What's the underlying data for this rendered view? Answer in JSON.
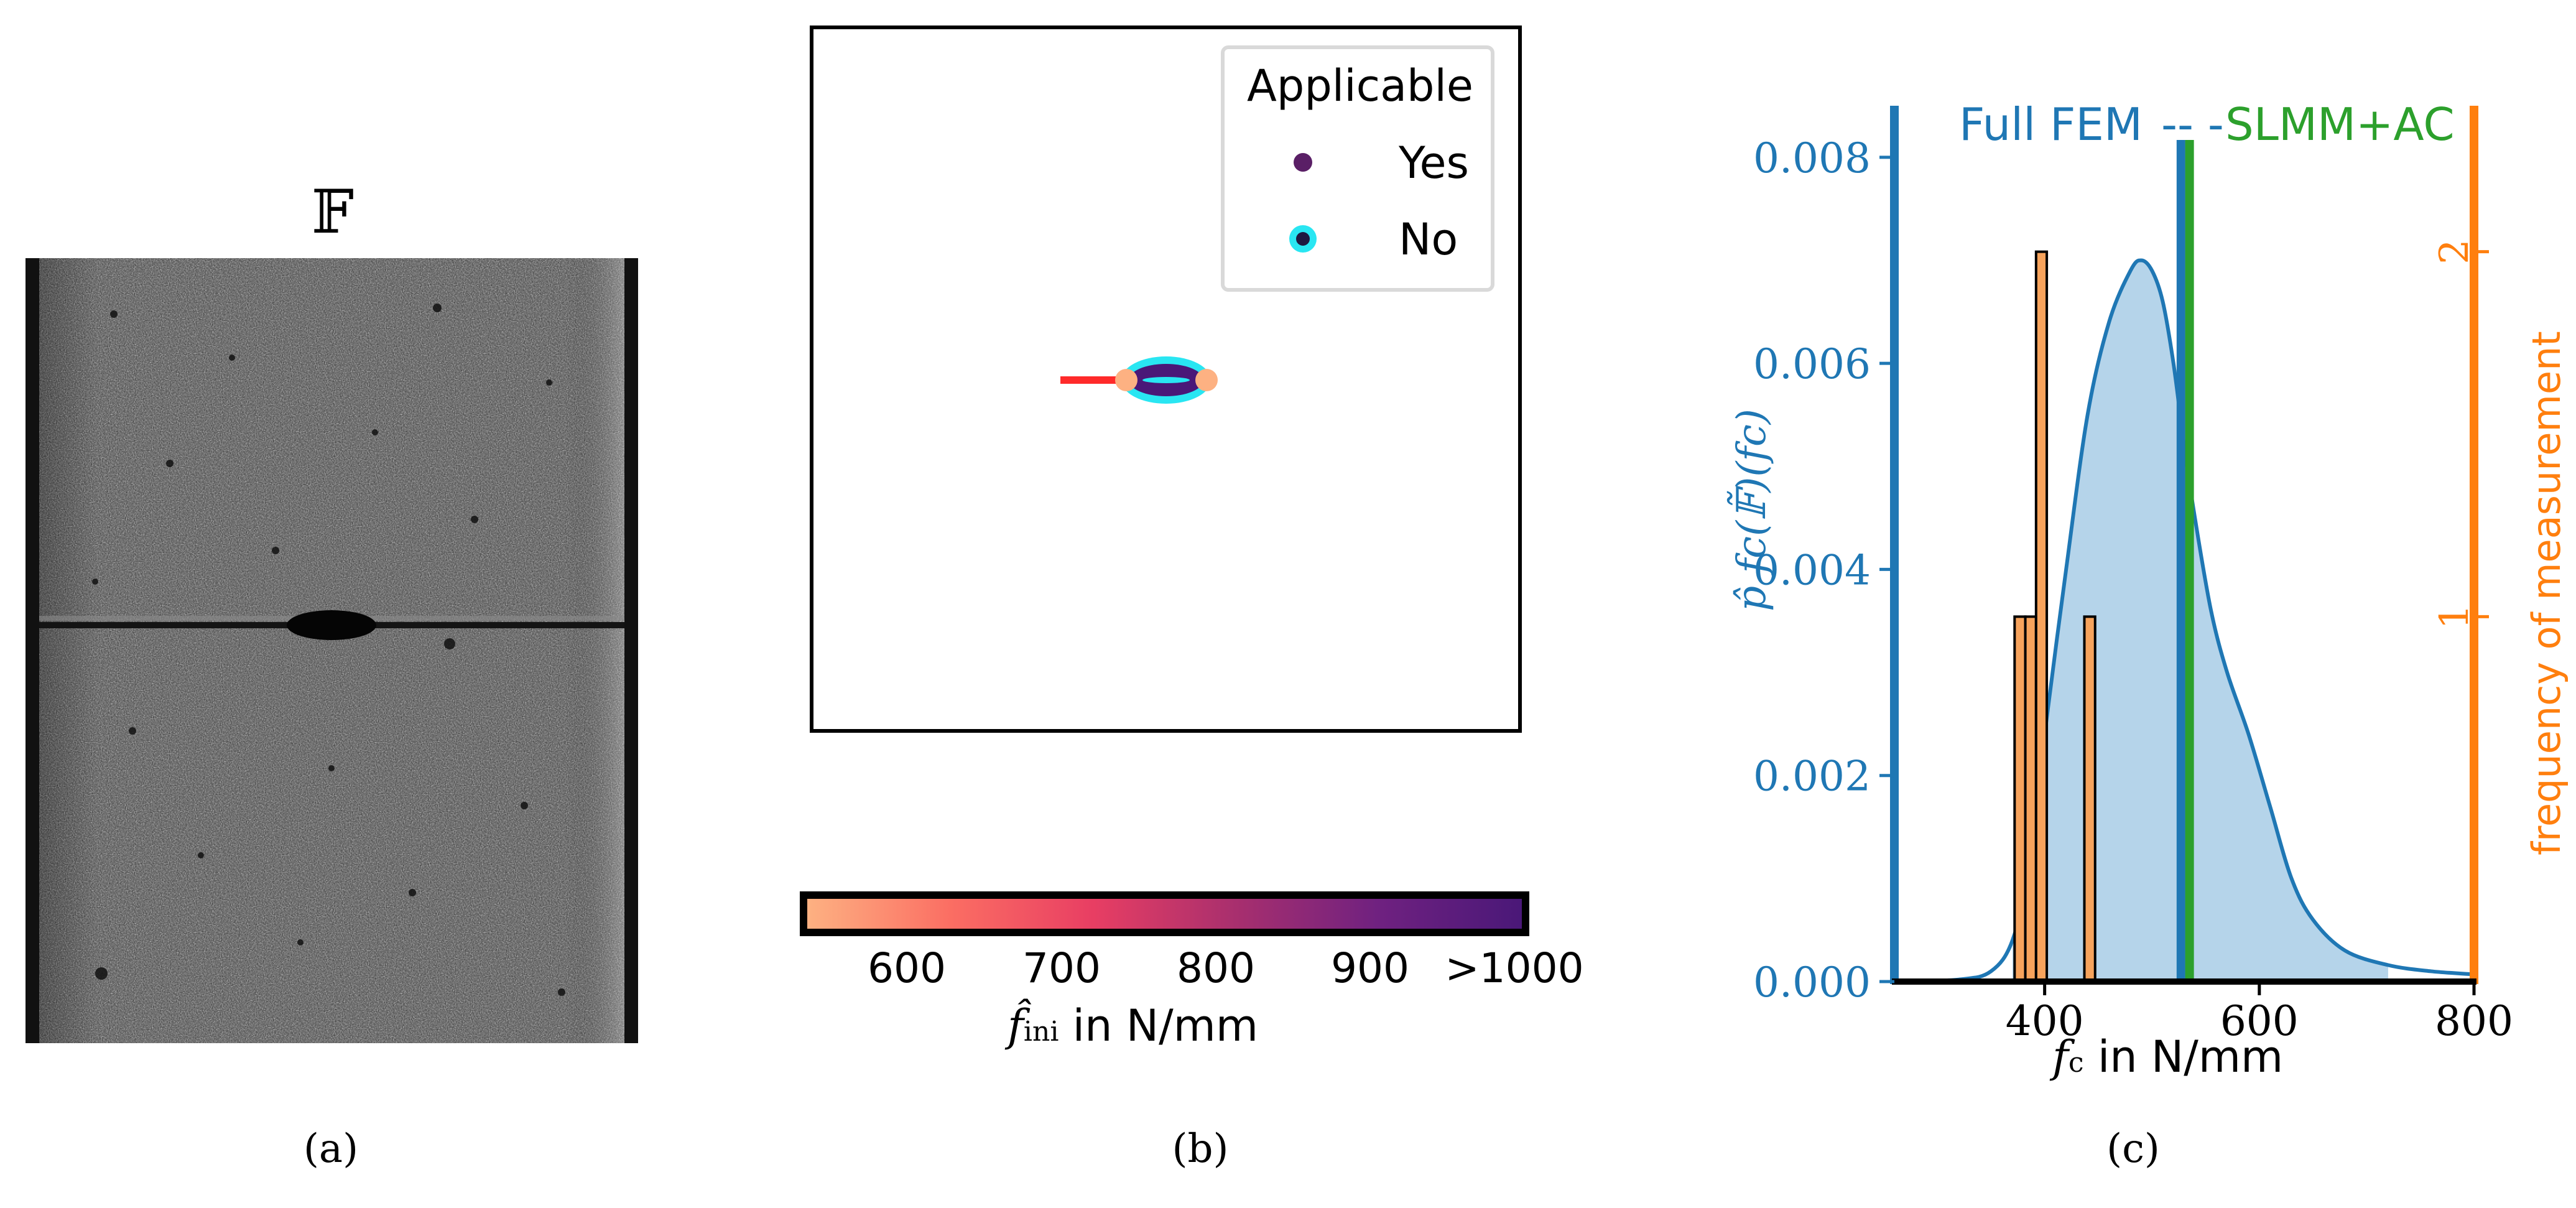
{
  "panel_a": {
    "label": "(a)",
    "symbol": "𝔽"
  },
  "panel_b": {
    "label": "(b)",
    "legend": {
      "title": "Applicable",
      "items": [
        {
          "label": "Yes",
          "color": "#5a1f66"
        },
        {
          "label": "No",
          "color": "#1e1840",
          "ring_color": "#29e6f2"
        }
      ]
    },
    "colorbar": {
      "ticks": [
        "600",
        "700",
        "800",
        "900",
        ">1000"
      ],
      "label_var": "f̂",
      "label_sub": "ini",
      "label_rest": " in N/mm",
      "colors": [
        "#fdb182",
        "#fb6e63",
        "#e83e63",
        "#a82f6e",
        "#6f2180",
        "#4a1878"
      ]
    }
  },
  "panel_c": {
    "label": "(c)",
    "chart_data": {
      "type": "area",
      "xlabel_var": "f",
      "xlabel_sub": "c",
      "xlabel_rest": " in N/mm",
      "ylabel_left": "p̂ fc(𝔽̃)(fc)",
      "ylabel_right": "frequency of measurement",
      "xlim": [
        260,
        800
      ],
      "ylim_left": [
        0,
        0.0085
      ],
      "ylim_right": [
        0,
        2.4
      ],
      "x_ticks": [
        "400",
        "600",
        "800"
      ],
      "y_ticks_left": [
        "0.000",
        "0.002",
        "0.004",
        "0.006",
        "0.008"
      ],
      "y_ticks_right": [
        "1",
        "2"
      ],
      "series": [
        {
          "name": "density",
          "color": "#1f77b4",
          "fill": "#b5d4ea",
          "x": [
            260,
            320,
            350,
            370,
            385,
            400,
            420,
            440,
            460,
            480,
            490,
            500,
            510,
            520,
            530,
            540,
            555,
            570,
            590,
            610,
            630,
            650,
            680,
            720,
            760,
            800
          ],
          "y": [
            0.0,
            2e-05,
            0.0001,
            0.0004,
            0.0011,
            0.0024,
            0.004,
            0.0055,
            0.0064,
            0.0069,
            0.007,
            0.0069,
            0.0066,
            0.006,
            0.0052,
            0.0045,
            0.0036,
            0.003,
            0.0024,
            0.0017,
            0.001,
            0.0006,
            0.0003,
            0.00016,
            0.0001,
            7e-05
          ]
        }
      ],
      "histogram": {
        "color": "#f7a35c",
        "edge": "#000000",
        "bars": [
          {
            "x0": 372,
            "x1": 382,
            "count": 1
          },
          {
            "x0": 382,
            "x1": 392,
            "count": 1
          },
          {
            "x0": 392,
            "x1": 402,
            "count": 2
          },
          {
            "x0": 437,
            "x1": 447,
            "count": 1
          }
        ]
      },
      "vlines": [
        {
          "label": "Full FEM",
          "x": 527,
          "color": "#1f77b4"
        },
        {
          "label": "SLMM+AC",
          "x": 535,
          "color": "#2ca02c"
        }
      ],
      "annotation_sep": "-- -",
      "left_axis_color": "#1f77b4",
      "right_axis_color": "#ff7f0e"
    }
  }
}
